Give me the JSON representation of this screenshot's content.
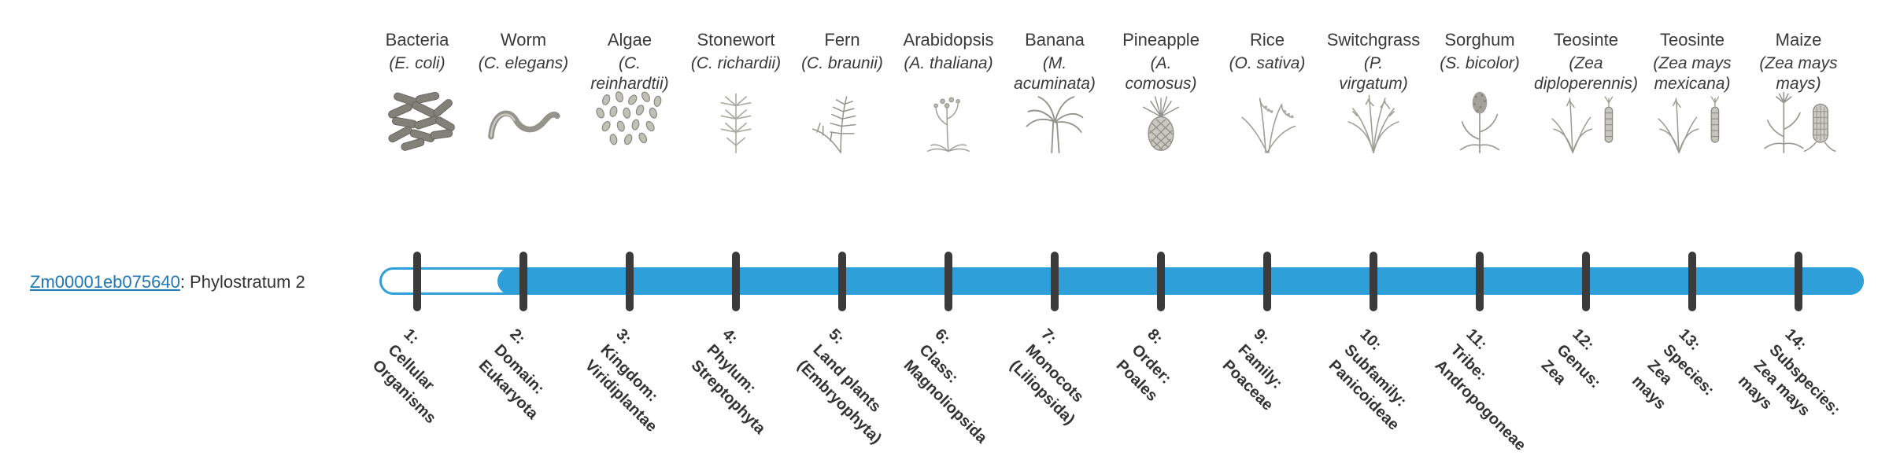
{
  "gene": {
    "id": "Zm00001eb075640",
    "suffix": ": Phylostratum 2"
  },
  "track": {
    "color": "#2f9fd9",
    "tick_color": "#3b3b3b",
    "fill_start_stratum": 2
  },
  "link_color": "#1f77b4",
  "strata": [
    {
      "index": 1,
      "organism": "Bacteria",
      "scientific": "(E. coli)",
      "icon": "bacteria-icon",
      "label": "1:\nCellular\nOrganisms"
    },
    {
      "index": 2,
      "organism": "Worm",
      "scientific": "(C. elegans)",
      "icon": "worm-icon",
      "label": "2:\nDomain:\nEukaryota"
    },
    {
      "index": 3,
      "organism": "Algae",
      "scientific": "(C.\nreinhardtii)",
      "icon": "algae-icon",
      "label": "3:\nKingdom:\nViridiplantae"
    },
    {
      "index": 4,
      "organism": "Stonewort",
      "scientific": "(C. richardii)",
      "icon": "stonewort-icon",
      "label": "4:\nPhylum:\nStreptophyta"
    },
    {
      "index": 5,
      "organism": "Fern",
      "scientific": "(C. braunii)",
      "icon": "fern-icon",
      "label": "5:\nLand plants\n(Embryophyta)"
    },
    {
      "index": 6,
      "organism": "Arabidopsis",
      "scientific": "(A. thaliana)",
      "icon": "arabidopsis-icon",
      "label": "6:\nClass:\nMagnoliopsida"
    },
    {
      "index": 7,
      "organism": "Banana",
      "scientific": "(M.\nacuminata)",
      "icon": "banana-plant-icon",
      "label": "7:\nMonocots\n(Liliopsida)"
    },
    {
      "index": 8,
      "organism": "Pineapple",
      "scientific": "(A.\ncomosus)",
      "icon": "pineapple-icon",
      "label": "8:\nOrder:\nPoales"
    },
    {
      "index": 9,
      "organism": "Rice",
      "scientific": "(O. sativa)",
      "icon": "rice-plant-icon",
      "label": "9:\nFamily:\nPoaceae"
    },
    {
      "index": 10,
      "organism": "Switchgrass",
      "scientific": "(P.\nvirgatum)",
      "icon": "switchgrass-icon",
      "label": "10:\nSubfamily:\nPanicoideae"
    },
    {
      "index": 11,
      "organism": "Sorghum",
      "scientific": "(S. bicolor)",
      "icon": "sorghum-icon",
      "label": "11:\nTribe:\nAndropogoneae"
    },
    {
      "index": 12,
      "organism": "Teosinte",
      "scientific": "(Zea\ndiploperennis)",
      "icon": "teosinte-plant-icon",
      "label": "12:\nGenus:\nZea"
    },
    {
      "index": 13,
      "organism": "Teosinte",
      "scientific": "(Zea mays\nmexicana)",
      "icon": "teosinte-mexicana-icon",
      "label": "13:\nSpecies:\nZea\nmays"
    },
    {
      "index": 14,
      "organism": "Maize",
      "scientific": "(Zea mays\nmays)",
      "icon": "maize-plant-icon",
      "label": "14:\nSubspecies:\nZea mays\nmays"
    }
  ]
}
